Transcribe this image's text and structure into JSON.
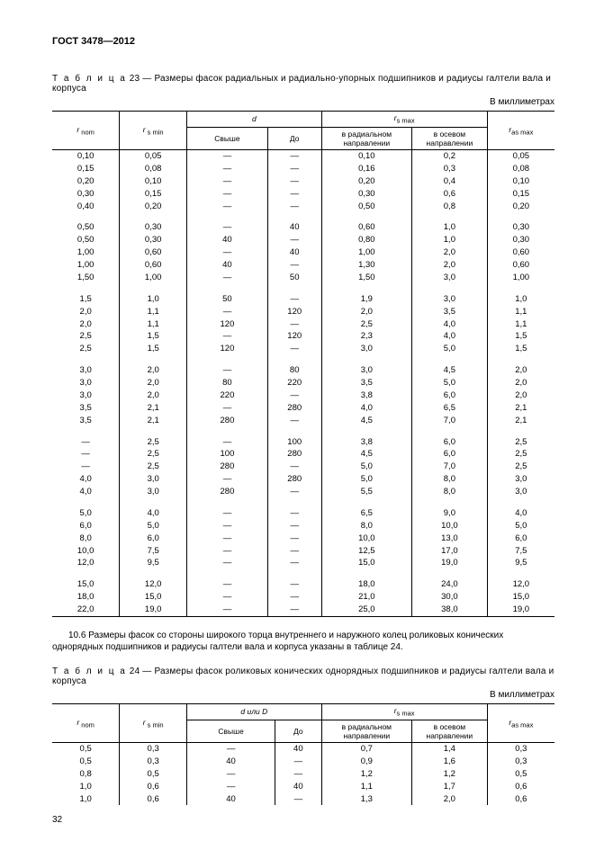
{
  "docHeader": "ГОСТ 3478—2012",
  "table23": {
    "captionPrefix": "Т а б л и ц а",
    "captionRest": "  23 — Размеры фасок радиальных и радиально-упорных подшипников и радиусы галтели вала и корпуса",
    "units": "В миллиметрах",
    "headers": {
      "r_nom": "r",
      "r_nom_sub": " nom",
      "r_smin": "r",
      "r_smin_sub": " s min",
      "d": "d",
      "over": "Свыше",
      "to": "До",
      "r_smax": "r",
      "r_smax_sub": "s max",
      "radial": "в радиальном направлении",
      "axial": "в осевом направлении",
      "r_asmax": "r",
      "r_asmax_sub": "as max"
    },
    "groups": [
      [
        [
          "0,10",
          "0,05",
          "—",
          "—",
          "0,10",
          "0,2",
          "0,05"
        ],
        [
          "0,15",
          "0,08",
          "—",
          "—",
          "0,16",
          "0,3",
          "0,08"
        ],
        [
          "0,20",
          "0,10",
          "—",
          "—",
          "0,20",
          "0,4",
          "0,10"
        ],
        [
          "0,30",
          "0,15",
          "—",
          "—",
          "0,30",
          "0,6",
          "0,15"
        ],
        [
          "0,40",
          "0,20",
          "—",
          "—",
          "0,50",
          "0,8",
          "0,20"
        ]
      ],
      [
        [
          "0,50",
          "0,30",
          "—",
          "40",
          "0,60",
          "1,0",
          "0,30"
        ],
        [
          "0,50",
          "0,30",
          "40",
          "—",
          "0,80",
          "1,0",
          "0,30"
        ],
        [
          "1,00",
          "0,60",
          "—",
          "40",
          "1,00",
          "2,0",
          "0,60"
        ],
        [
          "1,00",
          "0,60",
          "40",
          "—",
          "1,30",
          "2,0",
          "0,60"
        ],
        [
          "1,50",
          "1,00",
          "—",
          "50",
          "1,50",
          "3,0",
          "1,00"
        ]
      ],
      [
        [
          "1,5",
          "1,0",
          "50",
          "—",
          "1,9",
          "3,0",
          "1,0"
        ],
        [
          "2,0",
          "1,1",
          "—",
          "120",
          "2,0",
          "3,5",
          "1,1"
        ],
        [
          "2,0",
          "1,1",
          "120",
          "—",
          "2,5",
          "4,0",
          "1,1"
        ],
        [
          "2,5",
          "1,5",
          "—",
          "120",
          "2,3",
          "4,0",
          "1,5"
        ],
        [
          "2,5",
          "1,5",
          "120",
          "—",
          "3,0",
          "5,0",
          "1,5"
        ]
      ],
      [
        [
          "3,0",
          "2,0",
          "—",
          "80",
          "3,0",
          "4,5",
          "2,0"
        ],
        [
          "3,0",
          "2,0",
          "80",
          "220",
          "3,5",
          "5,0",
          "2,0"
        ],
        [
          "3,0",
          "2,0",
          "220",
          "—",
          "3,8",
          "6,0",
          "2,0"
        ],
        [
          "3,5",
          "2,1",
          "—",
          "280",
          "4,0",
          "6,5",
          "2,1"
        ],
        [
          "3,5",
          "2,1",
          "280",
          "—",
          "4,5",
          "7,0",
          "2,1"
        ]
      ],
      [
        [
          "—",
          "2,5",
          "—",
          "100",
          "3,8",
          "6,0",
          "2,5"
        ],
        [
          "—",
          "2,5",
          "100",
          "280",
          "4,5",
          "6,0",
          "2,5"
        ],
        [
          "—",
          "2,5",
          "280",
          "—",
          "5,0",
          "7,0",
          "2,5"
        ],
        [
          "4,0",
          "3,0",
          "—",
          "280",
          "5,0",
          "8,0",
          "3,0"
        ],
        [
          "4,0",
          "3,0",
          "280",
          "—",
          "5,5",
          "8,0",
          "3,0"
        ]
      ],
      [
        [
          "5,0",
          "4,0",
          "—",
          "—",
          "6,5",
          "9,0",
          "4,0"
        ],
        [
          "6,0",
          "5,0",
          "—",
          "—",
          "8,0",
          "10,0",
          "5,0"
        ],
        [
          "8,0",
          "6,0",
          "—",
          "—",
          "10,0",
          "13,0",
          "6,0"
        ],
        [
          "10,0",
          "7,5",
          "—",
          "—",
          "12,5",
          "17,0",
          "7,5"
        ],
        [
          "12,0",
          "9,5",
          "—",
          "—",
          "15,0",
          "19,0",
          "9,5"
        ]
      ],
      [
        [
          "15,0",
          "12,0",
          "—",
          "—",
          "18,0",
          "24,0",
          "12,0"
        ],
        [
          "18,0",
          "15,0",
          "—",
          "—",
          "21,0",
          "30,0",
          "15,0"
        ],
        [
          "22,0",
          "19,0",
          "—",
          "—",
          "25,0",
          "38,0",
          "19,0"
        ]
      ]
    ]
  },
  "para10_6": "10.6  Размеры фасок со стороны широкого торца внутреннего и наружного колец роликовых конических однорядных подшипников и радиусы галтели вала и корпуса указаны в таблице 24.",
  "table24": {
    "captionPrefix": "Т а б л и ц а",
    "captionRest": "  24 — Размеры фасок роликовых конических однорядных подшипников и радиусы галтели вала и корпуса",
    "units": "В миллиметрах",
    "headers": {
      "dD": "d или D"
    },
    "rows": [
      [
        "0,5",
        "0,3",
        "—",
        "40",
        "0,7",
        "1,4",
        "0,3"
      ],
      [
        "0,5",
        "0,3",
        "40",
        "—",
        "0,9",
        "1,6",
        "0,3"
      ],
      [
        "0,8",
        "0,5",
        "—",
        "—",
        "1,2",
        "1,2",
        "0,5"
      ],
      [
        "1,0",
        "0,6",
        "—",
        "40",
        "1,1",
        "1,7",
        "0,6"
      ],
      [
        "1,0",
        "0,6",
        "40",
        "—",
        "1,3",
        "2,0",
        "0,6"
      ]
    ]
  },
  "pageNum": "32"
}
